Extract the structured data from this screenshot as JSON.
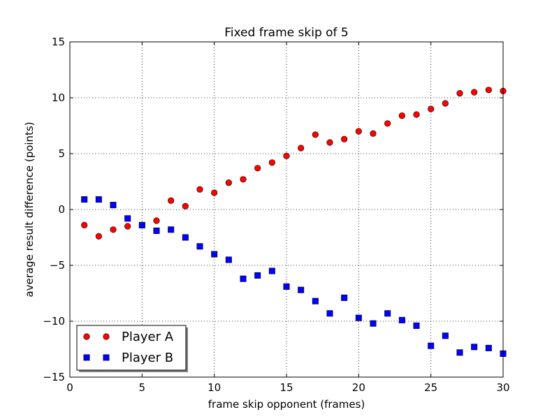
{
  "chart_data": {
    "type": "scatter",
    "title": "Fixed frame skip of 5",
    "xlabel": "frame skip opponent (frames)",
    "ylabel": "average result difference (points)",
    "xlim": [
      0,
      30
    ],
    "ylim": [
      -15,
      15
    ],
    "xticks": [
      0,
      5,
      10,
      15,
      20,
      25,
      30
    ],
    "yticks": [
      15,
      10,
      5,
      0,
      -5,
      -10,
      -15
    ],
    "ytick_labels": [
      "15",
      "10",
      "5",
      "0",
      "−5",
      "−10",
      "−15"
    ],
    "grid": true,
    "legend_position": "lower-left",
    "series": [
      {
        "name": "Player A",
        "marker": "circle",
        "color": "#ff0000",
        "x": [
          1,
          2,
          3,
          4,
          5,
          6,
          7,
          8,
          9,
          10,
          11,
          12,
          13,
          14,
          15,
          16,
          17,
          18,
          19,
          20,
          21,
          22,
          23,
          24,
          25,
          26,
          27,
          28,
          29,
          30
        ],
        "y": [
          -1.4,
          -2.4,
          -1.8,
          -1.5,
          -1.4,
          -1.0,
          0.8,
          0.3,
          1.8,
          1.5,
          2.4,
          2.7,
          3.7,
          4.2,
          4.8,
          5.5,
          6.7,
          6.0,
          6.3,
          7.0,
          6.8,
          7.7,
          8.4,
          8.5,
          9.0,
          9.5,
          10.4,
          10.5,
          10.7,
          10.6
        ]
      },
      {
        "name": "Player B",
        "marker": "square",
        "color": "#0000ff",
        "x": [
          1,
          2,
          3,
          4,
          5,
          6,
          7,
          8,
          9,
          10,
          11,
          12,
          13,
          14,
          15,
          16,
          17,
          18,
          19,
          20,
          21,
          22,
          23,
          24,
          25,
          26,
          27,
          28,
          29,
          30
        ],
        "y": [
          0.9,
          0.9,
          0.4,
          -0.8,
          -1.4,
          -1.9,
          -1.8,
          -2.5,
          -3.3,
          -4.0,
          -4.5,
          -6.2,
          -5.9,
          -5.5,
          -6.9,
          -7.2,
          -8.2,
          -9.3,
          -7.9,
          -9.7,
          -10.2,
          -9.3,
          -9.9,
          -10.4,
          -12.2,
          -11.3,
          -12.8,
          -12.3,
          -12.4,
          -12.9
        ]
      }
    ]
  }
}
